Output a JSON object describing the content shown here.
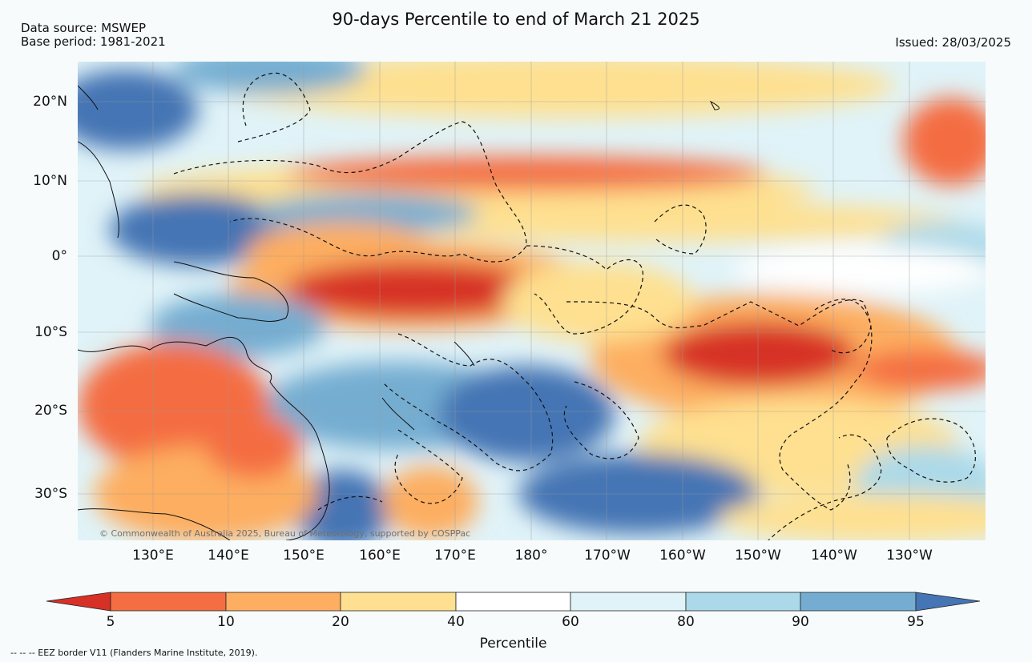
{
  "header": {
    "title": "90-days Percentile to end of March 21 2025",
    "data_source": "Data source: MSWEP",
    "base_period": "Base period: 1981-2021",
    "issued": "Issued: 28/03/2025"
  },
  "map": {
    "copyright": "© Commonwealth of Australia 2025, Bureau of Meteorology, supported by COSPPac",
    "lat_labels": [
      "20°N",
      "10°N",
      "0°",
      "10°S",
      "20°S",
      "30°S"
    ],
    "lon_labels": [
      "130°E",
      "140°E",
      "150°E",
      "160°E",
      "170°E",
      "180°",
      "170°W",
      "160°W",
      "150°W",
      "140°W",
      "130°W"
    ]
  },
  "colorbar": {
    "title": "Percentile",
    "tick_labels": [
      "5",
      "10",
      "20",
      "40",
      "60",
      "80",
      "90",
      "95"
    ],
    "colors": [
      "#d73027",
      "#f46d43",
      "#fdae61",
      "#fee090",
      "#ffffff",
      "#e0f3f8",
      "#abd9e9",
      "#74add1",
      "#4575b4"
    ]
  },
  "footnote": "--  --  -- EEZ border V11 (Flanders Marine Institute, 2019)."
}
